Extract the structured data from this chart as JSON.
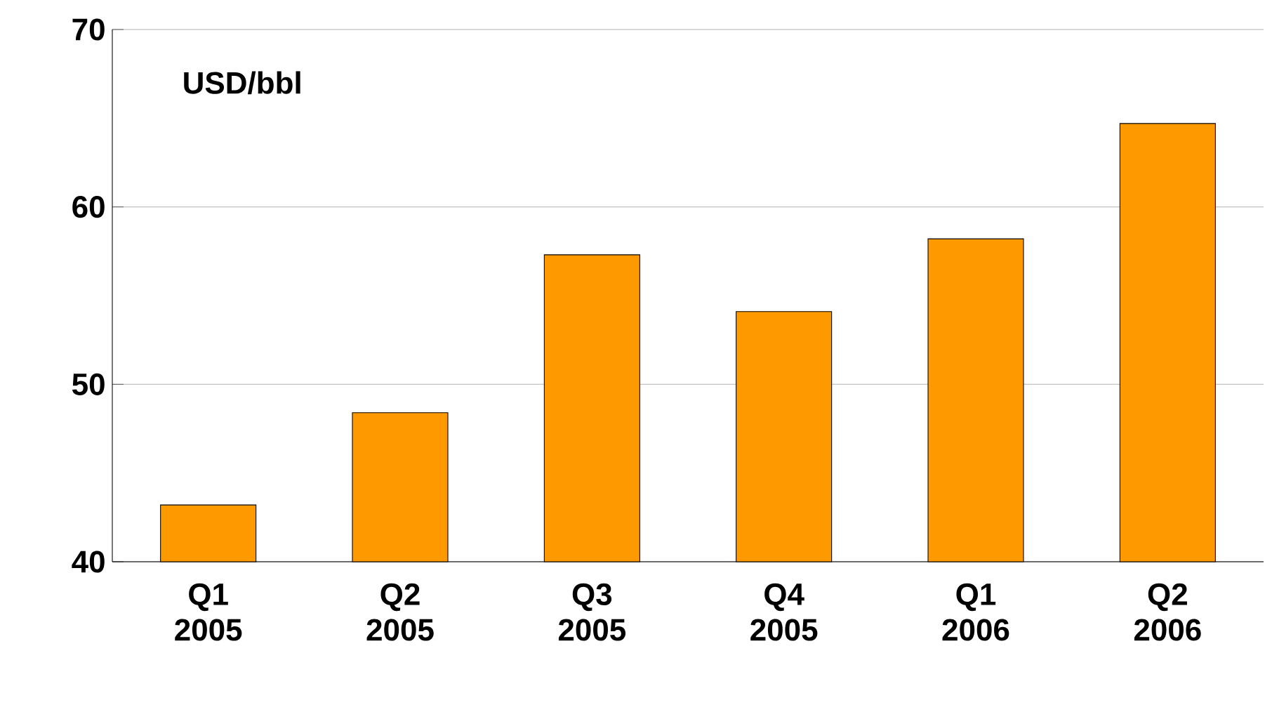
{
  "chart_data": {
    "type": "bar",
    "ylabel": "USD/bbl",
    "categories": [
      "Q1 2005",
      "Q2 2005",
      "Q3 2005",
      "Q4 2005",
      "Q1 2006",
      "Q2 2006"
    ],
    "values": [
      43.2,
      48.4,
      57.3,
      54.1,
      58.2,
      64.7
    ],
    "color": "#ff9900",
    "ylim": [
      40,
      70
    ],
    "yticks": [
      40,
      50,
      60,
      70
    ],
    "grid": "y"
  }
}
